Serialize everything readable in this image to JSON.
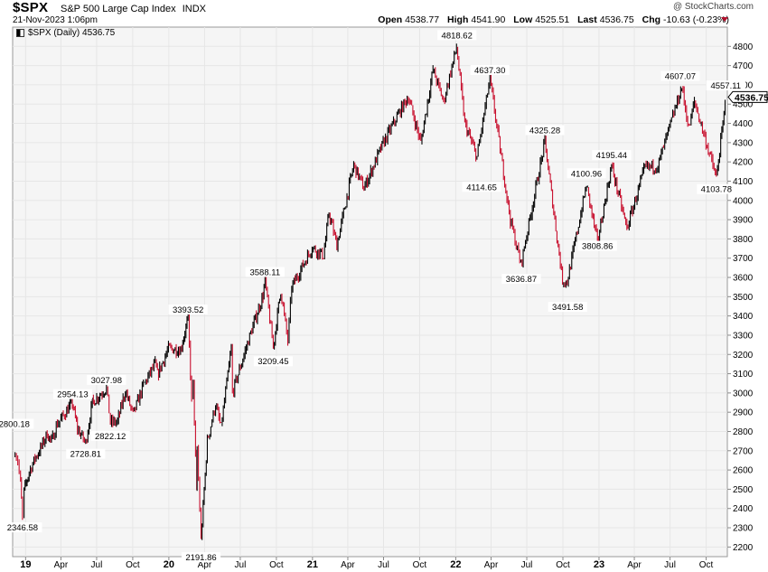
{
  "header": {
    "symbol": "$SPX",
    "name": "S&P 500 Large Cap Index",
    "exchange": "INDX",
    "timestamp": "21-Nov-2023 1:06pm",
    "credit": "@ StockCharts.com",
    "open_label": "Open",
    "open": "4538.77",
    "high_label": "High",
    "high": "4541.90",
    "low_label": "Low",
    "low": "4525.51",
    "last_label": "Last",
    "last": "4536.75",
    "chg_label": "Chg",
    "chg": "-10.63 (-0.23%)"
  },
  "legend": {
    "text": "$SPX (Daily) 4536.75"
  },
  "colors": {
    "up": "#000000",
    "down": "#c8102e",
    "grid": "#e6e6e6",
    "plot_bg": "#f5f5f5"
  },
  "chart_data": {
    "type": "line",
    "subtype": "ohlc-bar",
    "y_range": [
      2150,
      4900
    ],
    "y_ticks": [
      2200,
      2300,
      2400,
      2500,
      2600,
      2700,
      2800,
      2900,
      3000,
      3100,
      3200,
      3300,
      3400,
      3500,
      3600,
      3700,
      3800,
      3900,
      4000,
      4100,
      4200,
      4300,
      4400,
      4500,
      4600,
      4700,
      4800
    ],
    "x_ticks": [
      "19",
      "Apr",
      "Jul",
      "Oct",
      "20",
      "Apr",
      "Jul",
      "Oct",
      "21",
      "Apr",
      "Jul",
      "Oct",
      "22",
      "Apr",
      "Jul",
      "Oct",
      "23",
      "Apr",
      "Jul",
      "Oct"
    ],
    "x_ticks_bold": [
      "19",
      "20",
      "21",
      "22",
      "23"
    ],
    "grid": true,
    "last_value_label": "4536.75",
    "series": [
      {
        "points": [
          [
            "2018-12-05",
            2700
          ],
          [
            "2018-12-12",
            2650
          ],
          [
            "2018-12-19",
            2530
          ],
          [
            "2018-12-24",
            2351
          ],
          [
            "2018-12-28",
            2490
          ],
          [
            "2019-01-10",
            2590
          ],
          [
            "2019-01-25",
            2660
          ],
          [
            "2019-02-08",
            2710
          ],
          [
            "2019-02-25",
            2790
          ],
          [
            "2019-03-08",
            2745
          ],
          [
            "2019-03-20",
            2830
          ],
          [
            "2019-04-10",
            2890
          ],
          [
            "2019-04-30",
            2950
          ],
          [
            "2019-05-13",
            2815
          ],
          [
            "2019-06-03",
            2740
          ],
          [
            "2019-06-20",
            2950
          ],
          [
            "2019-07-26",
            3025
          ],
          [
            "2019-08-05",
            2845
          ],
          [
            "2019-08-23",
            2850
          ],
          [
            "2019-09-12",
            3010
          ],
          [
            "2019-10-02",
            2887
          ],
          [
            "2019-10-28",
            3039
          ],
          [
            "2019-11-27",
            3150
          ],
          [
            "2019-12-03",
            3095
          ],
          [
            "2019-12-31",
            3230
          ],
          [
            "2020-01-31",
            3225
          ],
          [
            "2020-02-19",
            3386
          ],
          [
            "2020-02-28",
            2955
          ],
          [
            "2020-03-03",
            3050
          ],
          [
            "2020-03-12",
            2480
          ],
          [
            "2020-03-13",
            2710
          ],
          [
            "2020-03-23",
            2237
          ],
          [
            "2020-04-08",
            2750
          ],
          [
            "2020-04-29",
            2940
          ],
          [
            "2020-05-13",
            2820
          ],
          [
            "2020-06-08",
            3232
          ],
          [
            "2020-06-11",
            3000
          ],
          [
            "2020-07-22",
            3275
          ],
          [
            "2020-08-28",
            3508
          ],
          [
            "2020-09-02",
            3580
          ],
          [
            "2020-09-23",
            3237
          ],
          [
            "2020-10-12",
            3534
          ],
          [
            "2020-10-30",
            3270
          ],
          [
            "2020-11-09",
            3550
          ],
          [
            "2020-12-31",
            3756
          ],
          [
            "2021-01-29",
            3714
          ],
          [
            "2021-02-12",
            3934
          ],
          [
            "2021-03-04",
            3768
          ],
          [
            "2021-04-16",
            4185
          ],
          [
            "2021-05-12",
            4063
          ],
          [
            "2021-06-30",
            4297
          ],
          [
            "2021-08-13",
            4468
          ],
          [
            "2021-09-02",
            4537
          ],
          [
            "2021-10-04",
            4300
          ],
          [
            "2021-11-04",
            4680
          ],
          [
            "2021-12-01",
            4513
          ],
          [
            "2022-01-03",
            4796
          ],
          [
            "2022-01-24",
            4400
          ],
          [
            "2022-02-24",
            4225
          ],
          [
            "2022-03-29",
            4632
          ],
          [
            "2022-05-20",
            3900
          ],
          [
            "2022-06-16",
            3667
          ],
          [
            "2022-08-16",
            4305
          ],
          [
            "2022-09-30",
            3585
          ],
          [
            "2022-10-12",
            3577
          ],
          [
            "2022-11-30",
            4080
          ],
          [
            "2022-12-28",
            3783
          ],
          [
            "2023-02-02",
            4179
          ],
          [
            "2023-03-13",
            3855
          ],
          [
            "2023-04-28",
            4170
          ],
          [
            "2023-05-31",
            4180
          ],
          [
            "2023-07-31",
            4589
          ],
          [
            "2023-08-18",
            4370
          ],
          [
            "2023-09-01",
            4515
          ],
          [
            "2023-10-27",
            4117
          ],
          [
            "2023-11-21",
            4537
          ]
        ]
      }
    ],
    "annotations": [
      {
        "date": "2018-12-03",
        "value": 2800.18,
        "label": "2800.18",
        "pos": "above"
      },
      {
        "date": "2018-12-24",
        "value": 2346.58,
        "label": "2346.58",
        "pos": "below"
      },
      {
        "date": "2019-05-01",
        "value": 2954.13,
        "label": "2954.13",
        "pos": "above"
      },
      {
        "date": "2019-06-03",
        "value": 2728.81,
        "label": "2728.81",
        "pos": "below"
      },
      {
        "date": "2019-07-26",
        "value": 3027.98,
        "label": "3027.98",
        "pos": "above"
      },
      {
        "date": "2019-08-05",
        "value": 2822.12,
        "label": "2822.12",
        "pos": "below"
      },
      {
        "date": "2020-02-19",
        "value": 3393.52,
        "label": "3393.52",
        "pos": "above"
      },
      {
        "date": "2020-03-23",
        "value": 2191.86,
        "label": "2191.86",
        "pos": "below"
      },
      {
        "date": "2020-09-02",
        "value": 3588.11,
        "label": "3588.11",
        "pos": "above"
      },
      {
        "date": "2020-09-23",
        "value": 3209.45,
        "label": "3209.45",
        "pos": "below"
      },
      {
        "date": "2022-01-04",
        "value": 4818.62,
        "label": "4818.62",
        "pos": "above"
      },
      {
        "date": "2022-03-08",
        "value": 4114.65,
        "label": "4114.65",
        "pos": "below"
      },
      {
        "date": "2022-03-29",
        "value": 4637.3,
        "label": "4637.30",
        "pos": "above"
      },
      {
        "date": "2022-06-17",
        "value": 3636.87,
        "label": "3636.87",
        "pos": "below"
      },
      {
        "date": "2022-08-16",
        "value": 4325.28,
        "label": "4325.28",
        "pos": "above"
      },
      {
        "date": "2022-10-13",
        "value": 3491.58,
        "label": "3491.58",
        "pos": "below"
      },
      {
        "date": "2022-11-30",
        "value": 4100.96,
        "label": "4100.96",
        "pos": "above"
      },
      {
        "date": "2022-12-28",
        "value": 3808.86,
        "label": "3808.86",
        "pos": "below"
      },
      {
        "date": "2023-02-02",
        "value": 4195.44,
        "label": "4195.44",
        "pos": "above"
      },
      {
        "date": "2023-07-27",
        "value": 4607.07,
        "label": "4607.07",
        "pos": "above"
      },
      {
        "date": "2023-10-27",
        "value": 4103.78,
        "label": "4103.78",
        "pos": "below"
      },
      {
        "date": "2023-11-20",
        "value": 4557.11,
        "label": "4557.11",
        "pos": "above"
      }
    ]
  }
}
